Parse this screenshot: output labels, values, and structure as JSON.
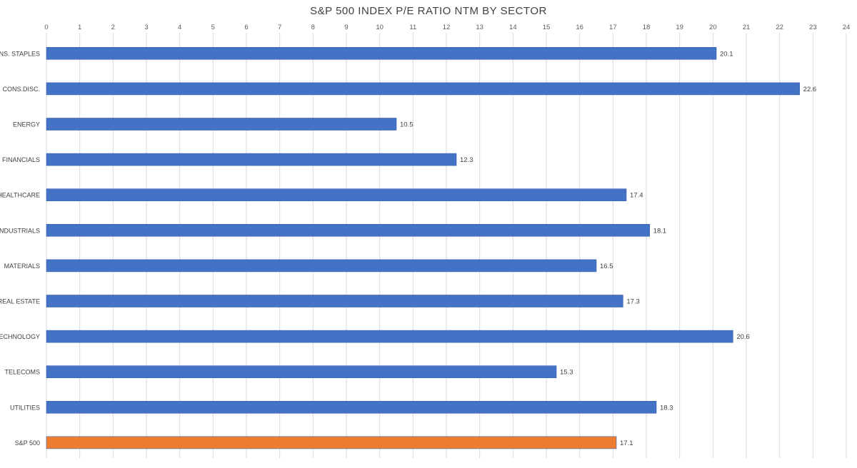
{
  "chart_data": {
    "type": "bar",
    "orientation": "horizontal",
    "title": "S&P 500 INDEX P/E RATIO NTM BY SECTOR",
    "xlabel": "",
    "ylabel": "",
    "xlim": [
      0,
      24
    ],
    "x_ticks": [
      0,
      1,
      2,
      3,
      4,
      5,
      6,
      7,
      8,
      9,
      10,
      11,
      12,
      13,
      14,
      15,
      16,
      17,
      18,
      19,
      20,
      21,
      22,
      23,
      24
    ],
    "x_axis_position": "top",
    "grid": true,
    "legend": "none",
    "categories": [
      "CONS. STAPLES",
      "CONS.DISC.",
      "ENERGY",
      "FINANCIALS",
      "HEALTHCARE",
      "INDUSTRIALS",
      "MATERIALS",
      "REAL ESTATE",
      "TECHNOLOGY",
      "TELECOMS",
      "UTILITIES",
      "S&P 500"
    ],
    "values": [
      20.1,
      22.6,
      10.5,
      12.3,
      17.4,
      18.1,
      16.5,
      17.3,
      20.6,
      15.3,
      18.3,
      17.1
    ],
    "data_labels": [
      "20.1",
      "22.6",
      "10.5",
      "12.3",
      "17.4",
      "18.1",
      "16.5",
      "17.3",
      "20.6",
      "15.3",
      "18.3",
      "17.1"
    ],
    "colors": {
      "default_bar": "#4472c4",
      "highlight_bar": "#ed7d31",
      "highlight_category": "S&P 500",
      "grid": "#d9d9d9"
    }
  }
}
